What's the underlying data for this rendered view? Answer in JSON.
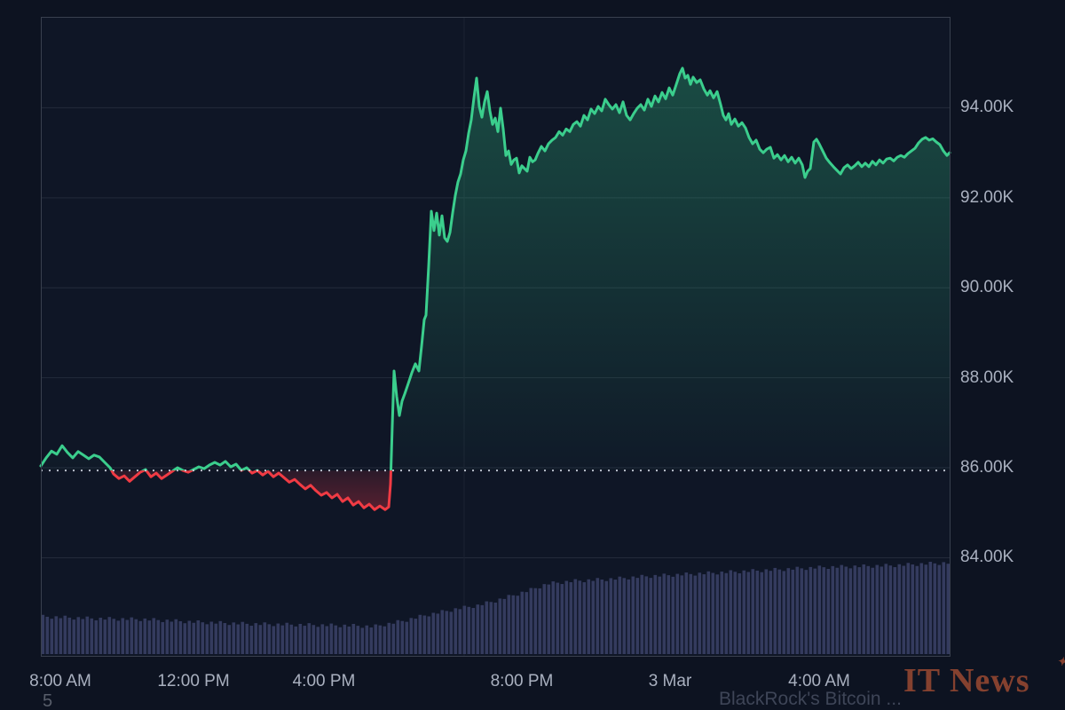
{
  "chart_data": {
    "type": "area",
    "baseline_price": 85.94,
    "ylim": [
      81.8,
      96.02
    ],
    "y_axis": {
      "ticks": [
        {
          "label": "94.00K",
          "value": 94
        },
        {
          "label": "92.00K",
          "value": 92
        },
        {
          "label": "90.00K",
          "value": 90
        },
        {
          "label": "88.00K",
          "value": 88
        },
        {
          "label": "86.00K",
          "value": 86
        },
        {
          "label": "84.00K",
          "value": 84
        }
      ]
    },
    "x_axis": {
      "ticks": [
        {
          "label": "8:00 AM",
          "x": 68
        },
        {
          "label": "12:00 PM",
          "x": 218
        },
        {
          "label": "4:00 PM",
          "x": 365
        },
        {
          "label": "8:00 PM",
          "x": 588
        },
        {
          "label": "3 Mar",
          "x": 755
        },
        {
          "label": "4:00 AM",
          "x": 923
        }
      ]
    },
    "session_break_x": 523,
    "price_series": [
      [
        46,
        86.04
      ],
      [
        52,
        86.22
      ],
      [
        58,
        86.37
      ],
      [
        64,
        86.3
      ],
      [
        70,
        86.49
      ],
      [
        76,
        86.34
      ],
      [
        82,
        86.22
      ],
      [
        88,
        86.36
      ],
      [
        94,
        86.28
      ],
      [
        100,
        86.2
      ],
      [
        106,
        86.28
      ],
      [
        112,
        86.24
      ],
      [
        118,
        86.12
      ],
      [
        124,
        86.0
      ],
      [
        128,
        85.86
      ],
      [
        134,
        85.76
      ],
      [
        140,
        85.82
      ],
      [
        146,
        85.7
      ],
      [
        152,
        85.8
      ],
      [
        158,
        85.9
      ],
      [
        164,
        85.96
      ],
      [
        170,
        85.8
      ],
      [
        176,
        85.88
      ],
      [
        182,
        85.76
      ],
      [
        188,
        85.84
      ],
      [
        194,
        85.92
      ],
      [
        200,
        86.0
      ],
      [
        206,
        85.94
      ],
      [
        212,
        85.9
      ],
      [
        218,
        85.96
      ],
      [
        224,
        86.02
      ],
      [
        230,
        85.98
      ],
      [
        236,
        86.06
      ],
      [
        242,
        86.12
      ],
      [
        248,
        86.06
      ],
      [
        254,
        86.14
      ],
      [
        260,
        86.02
      ],
      [
        266,
        86.08
      ],
      [
        272,
        85.94
      ],
      [
        278,
        86.0
      ],
      [
        284,
        85.88
      ],
      [
        290,
        85.94
      ],
      [
        296,
        85.84
      ],
      [
        302,
        85.92
      ],
      [
        308,
        85.8
      ],
      [
        314,
        85.88
      ],
      [
        320,
        85.78
      ],
      [
        326,
        85.68
      ],
      [
        332,
        85.74
      ],
      [
        338,
        85.63
      ],
      [
        344,
        85.53
      ],
      [
        350,
        85.61
      ],
      [
        356,
        85.49
      ],
      [
        362,
        85.39
      ],
      [
        368,
        85.45
      ],
      [
        374,
        85.33
      ],
      [
        380,
        85.41
      ],
      [
        386,
        85.25
      ],
      [
        392,
        85.33
      ],
      [
        398,
        85.17
      ],
      [
        404,
        85.25
      ],
      [
        410,
        85.11
      ],
      [
        416,
        85.19
      ],
      [
        422,
        85.07
      ],
      [
        428,
        85.15
      ],
      [
        434,
        85.07
      ],
      [
        438,
        85.13
      ],
      [
        440,
        85.64
      ],
      [
        442,
        86.93
      ],
      [
        444,
        88.15
      ],
      [
        447,
        87.58
      ],
      [
        450,
        87.16
      ],
      [
        453,
        87.48
      ],
      [
        456,
        87.64
      ],
      [
        460,
        87.87
      ],
      [
        464,
        88.11
      ],
      [
        468,
        88.31
      ],
      [
        472,
        88.15
      ],
      [
        475,
        88.7
      ],
      [
        478,
        89.29
      ],
      [
        480,
        89.39
      ],
      [
        483,
        90.48
      ],
      [
        486,
        91.7
      ],
      [
        489,
        91.27
      ],
      [
        492,
        91.66
      ],
      [
        495,
        91.17
      ],
      [
        498,
        91.6
      ],
      [
        501,
        91.11
      ],
      [
        504,
        91.03
      ],
      [
        507,
        91.23
      ],
      [
        510,
        91.66
      ],
      [
        513,
        92.05
      ],
      [
        516,
        92.35
      ],
      [
        519,
        92.53
      ],
      [
        522,
        92.84
      ],
      [
        525,
        93.04
      ],
      [
        528,
        93.43
      ],
      [
        531,
        93.73
      ],
      [
        534,
        94.22
      ],
      [
        537,
        94.66
      ],
      [
        540,
        94.03
      ],
      [
        543,
        93.79
      ],
      [
        546,
        94.13
      ],
      [
        549,
        94.36
      ],
      [
        552,
        93.93
      ],
      [
        555,
        93.63
      ],
      [
        558,
        93.77
      ],
      [
        561,
        93.47
      ],
      [
        564,
        93.99
      ],
      [
        567,
        93.53
      ],
      [
        570,
        92.94
      ],
      [
        573,
        93.04
      ],
      [
        576,
        92.74
      ],
      [
        579,
        92.84
      ],
      [
        582,
        92.88
      ],
      [
        585,
        92.55
      ],
      [
        588,
        92.71
      ],
      [
        591,
        92.65
      ],
      [
        594,
        92.59
      ],
      [
        597,
        92.9
      ],
      [
        600,
        92.8
      ],
      [
        603,
        92.84
      ],
      [
        606,
        92.98
      ],
      [
        610,
        93.14
      ],
      [
        614,
        93.04
      ],
      [
        618,
        93.2
      ],
      [
        622,
        93.28
      ],
      [
        626,
        93.34
      ],
      [
        630,
        93.47
      ],
      [
        634,
        93.39
      ],
      [
        638,
        93.53
      ],
      [
        642,
        93.47
      ],
      [
        646,
        93.63
      ],
      [
        650,
        93.69
      ],
      [
        654,
        93.59
      ],
      [
        658,
        93.83
      ],
      [
        662,
        93.73
      ],
      [
        666,
        93.97
      ],
      [
        670,
        93.87
      ],
      [
        674,
        94.03
      ],
      [
        678,
        93.93
      ],
      [
        682,
        94.19
      ],
      [
        686,
        94.07
      ],
      [
        690,
        93.97
      ],
      [
        694,
        94.07
      ],
      [
        698,
        93.89
      ],
      [
        702,
        94.13
      ],
      [
        706,
        93.83
      ],
      [
        710,
        93.73
      ],
      [
        714,
        93.87
      ],
      [
        718,
        93.99
      ],
      [
        722,
        94.07
      ],
      [
        726,
        93.95
      ],
      [
        730,
        94.19
      ],
      [
        734,
        94.03
      ],
      [
        738,
        94.26
      ],
      [
        742,
        94.13
      ],
      [
        746,
        94.34
      ],
      [
        750,
        94.2
      ],
      [
        754,
        94.44
      ],
      [
        758,
        94.28
      ],
      [
        762,
        94.52
      ],
      [
        766,
        94.76
      ],
      [
        769,
        94.88
      ],
      [
        772,
        94.66
      ],
      [
        775,
        94.72
      ],
      [
        778,
        94.52
      ],
      [
        781,
        94.68
      ],
      [
        785,
        94.56
      ],
      [
        789,
        94.62
      ],
      [
        793,
        94.42
      ],
      [
        797,
        94.28
      ],
      [
        800,
        94.38
      ],
      [
        804,
        94.22
      ],
      [
        808,
        94.36
      ],
      [
        812,
        94.07
      ],
      [
        815,
        93.83
      ],
      [
        818,
        93.73
      ],
      [
        821,
        93.87
      ],
      [
        824,
        93.63
      ],
      [
        828,
        93.75
      ],
      [
        832,
        93.59
      ],
      [
        836,
        93.67
      ],
      [
        840,
        93.55
      ],
      [
        844,
        93.34
      ],
      [
        848,
        93.2
      ],
      [
        852,
        93.28
      ],
      [
        856,
        93.08
      ],
      [
        860,
        93.0
      ],
      [
        864,
        93.08
      ],
      [
        868,
        93.12
      ],
      [
        872,
        92.88
      ],
      [
        876,
        92.96
      ],
      [
        880,
        92.84
      ],
      [
        884,
        92.94
      ],
      [
        888,
        92.8
      ],
      [
        892,
        92.9
      ],
      [
        896,
        92.77
      ],
      [
        900,
        92.88
      ],
      [
        904,
        92.73
      ],
      [
        907,
        92.45
      ],
      [
        910,
        92.59
      ],
      [
        913,
        92.65
      ],
      [
        917,
        93.24
      ],
      [
        920,
        93.3
      ],
      [
        923,
        93.2
      ],
      [
        927,
        93.04
      ],
      [
        931,
        92.88
      ],
      [
        935,
        92.78
      ],
      [
        939,
        92.69
      ],
      [
        943,
        92.61
      ],
      [
        947,
        92.53
      ],
      [
        951,
        92.67
      ],
      [
        955,
        92.73
      ],
      [
        959,
        92.65
      ],
      [
        963,
        92.71
      ],
      [
        967,
        92.79
      ],
      [
        971,
        92.69
      ],
      [
        975,
        92.77
      ],
      [
        979,
        92.69
      ],
      [
        983,
        92.81
      ],
      [
        987,
        92.73
      ],
      [
        991,
        92.84
      ],
      [
        995,
        92.77
      ],
      [
        999,
        92.86
      ],
      [
        1003,
        92.88
      ],
      [
        1007,
        92.82
      ],
      [
        1011,
        92.9
      ],
      [
        1015,
        92.94
      ],
      [
        1019,
        92.9
      ],
      [
        1023,
        92.98
      ],
      [
        1027,
        93.04
      ],
      [
        1031,
        93.1
      ],
      [
        1035,
        93.22
      ],
      [
        1039,
        93.3
      ],
      [
        1043,
        93.34
      ],
      [
        1047,
        93.28
      ],
      [
        1051,
        93.31
      ],
      [
        1055,
        93.24
      ],
      [
        1059,
        93.18
      ],
      [
        1063,
        93.04
      ],
      [
        1067,
        92.94
      ],
      [
        1070,
        93.0
      ]
    ],
    "volume_relative": [
      [
        46,
        0.41
      ],
      [
        100,
        0.39
      ],
      [
        160,
        0.38
      ],
      [
        220,
        0.35
      ],
      [
        280,
        0.33
      ],
      [
        340,
        0.32
      ],
      [
        400,
        0.31
      ],
      [
        418,
        0.3
      ],
      [
        435,
        0.33
      ],
      [
        455,
        0.37
      ],
      [
        475,
        0.42
      ],
      [
        495,
        0.46
      ],
      [
        515,
        0.5
      ],
      [
        535,
        0.53
      ],
      [
        555,
        0.58
      ],
      [
        575,
        0.64
      ],
      [
        595,
        0.7
      ],
      [
        615,
        0.77
      ],
      [
        645,
        0.8
      ],
      [
        685,
        0.82
      ],
      [
        725,
        0.85
      ],
      [
        765,
        0.87
      ],
      [
        805,
        0.89
      ],
      [
        845,
        0.91
      ],
      [
        885,
        0.93
      ],
      [
        925,
        0.95
      ],
      [
        965,
        0.96
      ],
      [
        1005,
        0.97
      ],
      [
        1045,
        0.99
      ],
      [
        1071,
        1.0
      ]
    ]
  },
  "colors": {
    "background": "#0d1321",
    "plot_background": "#0f1626",
    "grid": "#232b3b",
    "frame": "#39404e",
    "session_break": "#1b2232",
    "axis_text": "#a9b0bf",
    "up_line": "#3bce8d",
    "up_fill": "#34d08c",
    "down_line": "#f03b44",
    "down_fill": "#f23645",
    "baseline_dots": "#cdd3df",
    "volume_bar": "#343b5e",
    "watermark": "#85412f",
    "headline_text": "#3e4557",
    "range_text": "#585e6a"
  },
  "watermark": {
    "text": "IT News",
    "sparkle_icon": "✦"
  },
  "footer": {
    "headline": "BlackRock's Bitcoin ...",
    "range_label": "5"
  }
}
